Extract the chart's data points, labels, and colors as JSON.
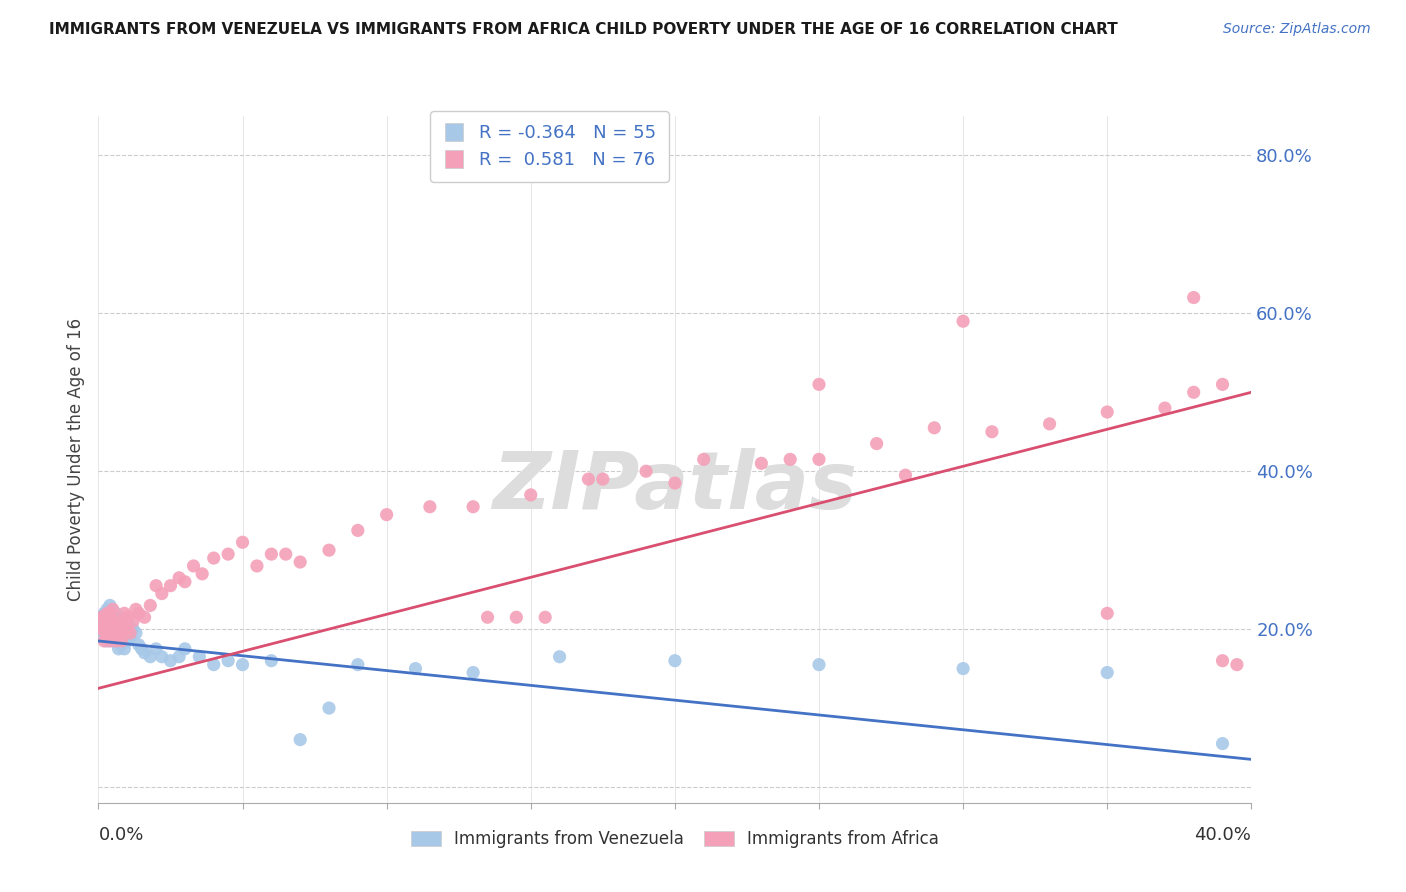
{
  "title": "IMMIGRANTS FROM VENEZUELA VS IMMIGRANTS FROM AFRICA CHILD POVERTY UNDER THE AGE OF 16 CORRELATION CHART",
  "source": "Source: ZipAtlas.com",
  "ylabel": "Child Poverty Under the Age of 16",
  "xlim": [
    0.0,
    0.4
  ],
  "ylim": [
    -0.02,
    0.85
  ],
  "yticks": [
    0.0,
    0.2,
    0.4,
    0.6,
    0.8
  ],
  "ytick_labels": [
    "",
    "20.0%",
    "40.0%",
    "60.0%",
    "80.0%"
  ],
  "xticks": [
    0.0,
    0.05,
    0.1,
    0.15,
    0.2,
    0.25,
    0.3,
    0.35,
    0.4
  ],
  "r_venezuela": -0.364,
  "n_venezuela": 55,
  "r_africa": 0.581,
  "n_africa": 76,
  "venezuela_color": "#a8c8e8",
  "africa_color": "#f4a0b8",
  "line_venezuela_color": "#4472c4",
  "line_africa_color": "#d94f70",
  "watermark": "ZIPatlas",
  "background_color": "#ffffff",
  "ven_line_x0": 0.0,
  "ven_line_y0": 0.185,
  "ven_line_x1": 0.4,
  "ven_line_y1": 0.035,
  "afr_line_x0": 0.0,
  "afr_line_y0": 0.125,
  "afr_line_x1": 0.4,
  "afr_line_y1": 0.5,
  "ven_x": [
    0.001,
    0.001,
    0.002,
    0.002,
    0.002,
    0.003,
    0.003,
    0.003,
    0.003,
    0.004,
    0.004,
    0.004,
    0.005,
    0.005,
    0.005,
    0.006,
    0.006,
    0.006,
    0.007,
    0.007,
    0.007,
    0.008,
    0.008,
    0.009,
    0.009,
    0.01,
    0.01,
    0.011,
    0.012,
    0.013,
    0.014,
    0.015,
    0.016,
    0.018,
    0.02,
    0.022,
    0.025,
    0.028,
    0.03,
    0.035,
    0.04,
    0.045,
    0.05,
    0.06,
    0.07,
    0.08,
    0.09,
    0.11,
    0.13,
    0.16,
    0.2,
    0.25,
    0.3,
    0.35,
    0.39
  ],
  "ven_y": [
    0.2,
    0.215,
    0.19,
    0.205,
    0.22,
    0.185,
    0.2,
    0.21,
    0.225,
    0.195,
    0.215,
    0.23,
    0.185,
    0.2,
    0.215,
    0.19,
    0.205,
    0.22,
    0.175,
    0.195,
    0.21,
    0.18,
    0.2,
    0.175,
    0.195,
    0.185,
    0.21,
    0.19,
    0.2,
    0.195,
    0.18,
    0.175,
    0.17,
    0.165,
    0.175,
    0.165,
    0.16,
    0.165,
    0.175,
    0.165,
    0.155,
    0.16,
    0.155,
    0.16,
    0.06,
    0.1,
    0.155,
    0.15,
    0.145,
    0.165,
    0.16,
    0.155,
    0.15,
    0.145,
    0.055
  ],
  "afr_x": [
    0.001,
    0.001,
    0.002,
    0.002,
    0.002,
    0.003,
    0.003,
    0.003,
    0.004,
    0.004,
    0.004,
    0.005,
    0.005,
    0.005,
    0.006,
    0.006,
    0.007,
    0.007,
    0.008,
    0.008,
    0.009,
    0.009,
    0.01,
    0.01,
    0.011,
    0.012,
    0.013,
    0.014,
    0.016,
    0.018,
    0.02,
    0.022,
    0.025,
    0.028,
    0.03,
    0.033,
    0.036,
    0.04,
    0.045,
    0.05,
    0.055,
    0.06,
    0.065,
    0.07,
    0.08,
    0.09,
    0.1,
    0.115,
    0.13,
    0.15,
    0.17,
    0.19,
    0.21,
    0.23,
    0.25,
    0.27,
    0.29,
    0.31,
    0.33,
    0.35,
    0.37,
    0.38,
    0.39,
    0.28,
    0.24,
    0.2,
    0.175,
    0.155,
    0.145,
    0.135,
    0.25,
    0.3,
    0.35,
    0.38,
    0.39,
    0.395
  ],
  "afr_y": [
    0.2,
    0.215,
    0.185,
    0.2,
    0.215,
    0.19,
    0.205,
    0.22,
    0.185,
    0.205,
    0.22,
    0.195,
    0.21,
    0.225,
    0.185,
    0.205,
    0.19,
    0.21,
    0.185,
    0.205,
    0.22,
    0.195,
    0.2,
    0.215,
    0.195,
    0.21,
    0.225,
    0.22,
    0.215,
    0.23,
    0.255,
    0.245,
    0.255,
    0.265,
    0.26,
    0.28,
    0.27,
    0.29,
    0.295,
    0.31,
    0.28,
    0.295,
    0.295,
    0.285,
    0.3,
    0.325,
    0.345,
    0.355,
    0.355,
    0.37,
    0.39,
    0.4,
    0.415,
    0.41,
    0.415,
    0.435,
    0.455,
    0.45,
    0.46,
    0.475,
    0.48,
    0.5,
    0.51,
    0.395,
    0.415,
    0.385,
    0.39,
    0.215,
    0.215,
    0.215,
    0.51,
    0.59,
    0.22,
    0.62,
    0.16,
    0.155
  ]
}
